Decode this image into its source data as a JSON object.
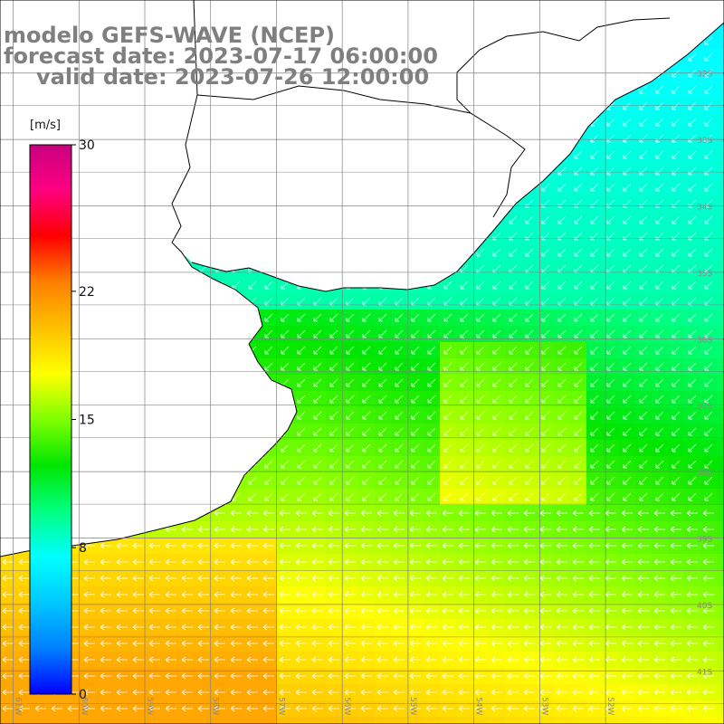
{
  "title": {
    "line1": "modelo GEFS-WAVE (NCEP)",
    "line2": "forecast date: 2023-07-17 06:00:00",
    "line3": "valid date: 2023-07-26 12:00:00"
  },
  "colorbar": {
    "unit": "[m/s]",
    "ticks": [
      {
        "value": 30,
        "label": "30"
      },
      {
        "value": 22,
        "label": "22"
      },
      {
        "value": 15,
        "label": "15"
      },
      {
        "value": 8,
        "label": "8"
      },
      {
        "value": 0,
        "label": "0"
      }
    ],
    "min": 0,
    "max": 30,
    "colors": [
      "#0000ff",
      "#0080ff",
      "#00c8ff",
      "#00ffff",
      "#00ff80",
      "#00e600",
      "#80ff00",
      "#ffff00",
      "#ffc000",
      "#ff8000",
      "#ff0000",
      "#ff0080",
      "#c80080"
    ]
  },
  "map": {
    "longitudes": [
      "61W",
      "60W",
      "59W",
      "58W",
      "57W",
      "56W",
      "55W",
      "54W",
      "53W",
      "52W"
    ],
    "latitudes": [
      "32S",
      "33S",
      "34S",
      "35S",
      "36S",
      "37S",
      "38S",
      "39S",
      "40S",
      "41S"
    ],
    "lon_range": [
      -61.2,
      -50.2
    ],
    "lat_range": [
      -41.8,
      -30.9
    ],
    "land_color": "#ffffff",
    "coast_color": "#000000",
    "grid_color": "#808080",
    "arrow_color": "#ffffff"
  }
}
